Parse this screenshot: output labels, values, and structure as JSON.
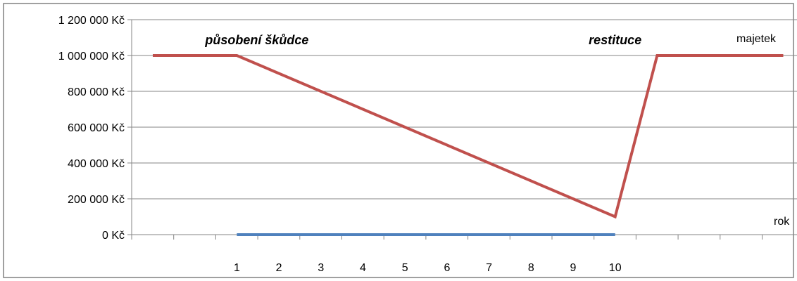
{
  "chart_data": {
    "type": "line",
    "x": [
      0,
      1,
      2,
      3,
      4,
      5,
      6,
      7,
      8,
      9,
      10,
      11,
      12,
      13,
      14
    ],
    "x_tick_labels": [
      "1",
      "2",
      "3",
      "4",
      "5",
      "6",
      "7",
      "8",
      "9",
      "10"
    ],
    "series": [
      {
        "name": "majetek",
        "color": "#c0504d",
        "points": [
          [
            -1,
            1000000
          ],
          [
            1,
            1000000
          ],
          [
            10,
            100000
          ],
          [
            11,
            1000000
          ],
          [
            14,
            1000000
          ]
        ]
      },
      {
        "name": "rok",
        "color": "#4f81bd",
        "points": [
          [
            1,
            0
          ],
          [
            10,
            0
          ]
        ]
      }
    ],
    "y_tick_labels": [
      "0 Kč",
      "200 000 Kč",
      "400 000 Kč",
      "600 000 Kč",
      "800 000 Kč",
      "1 000 000 Kč",
      "1 200 000 Kč"
    ],
    "y_ticks": [
      0,
      200000,
      400000,
      600000,
      800000,
      1000000,
      1200000
    ],
    "ylim": [
      0,
      1200000
    ],
    "grid": true,
    "annotations": [
      {
        "id": "puso",
        "text": "působení škůdce",
        "x": 1,
        "y": 1000000
      },
      {
        "id": "rest",
        "text": "restituce",
        "x": 10,
        "y": 1000000
      }
    ]
  }
}
